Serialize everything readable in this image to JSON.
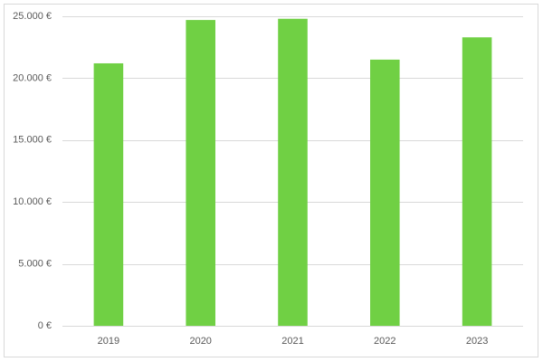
{
  "chart_data": {
    "type": "bar",
    "categories": [
      "2019",
      "2020",
      "2021",
      "2022",
      "2023"
    ],
    "values": [
      21200,
      24700,
      24800,
      21500,
      23300
    ],
    "color": "#70d044",
    "ylim": [
      0,
      25000
    ],
    "yticks": [
      {
        "value": 0,
        "label": "0 €"
      },
      {
        "value": 5000,
        "label": "5.000 €"
      },
      {
        "value": 10000,
        "label": "10.000 €"
      },
      {
        "value": 15000,
        "label": "15.000 €"
      },
      {
        "value": 20000,
        "label": "20.000 €"
      },
      {
        "value": 25000,
        "label": "25.000 €"
      }
    ],
    "grid": true
  }
}
